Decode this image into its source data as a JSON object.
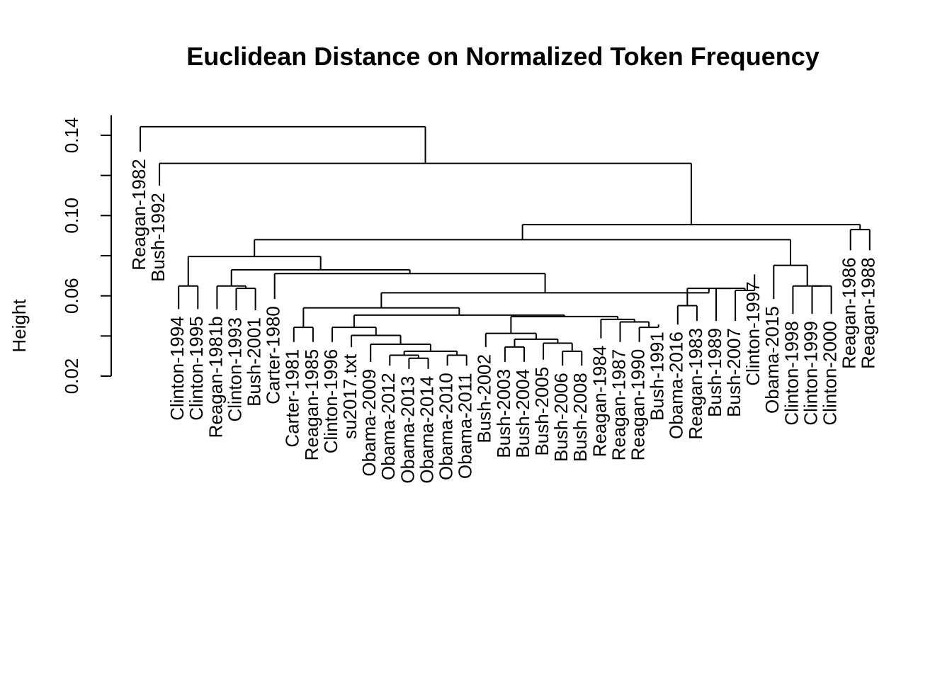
{
  "chart_data": {
    "type": "dendrogram",
    "title": "Euclidean Distance on Normalized Token Frequency",
    "ylabel": "Height",
    "ylim": [
      0.02,
      0.15
    ],
    "yticks": [
      0.02,
      0.06,
      0.1,
      0.14
    ],
    "ytick_labels": [
      "0.02",
      "0.06",
      "0.10",
      "0.14"
    ],
    "leaves": [
      {
        "label": "Reagan-1982",
        "height": 0.1318
      },
      {
        "label": "Bush-1992",
        "height": 0.1149
      },
      {
        "label": "Clinton-1994",
        "height": 0.0534
      },
      {
        "label": "Clinton-1995",
        "height": 0.0534
      },
      {
        "label": "Reagan-1981b",
        "height": 0.0534
      },
      {
        "label": "Clinton-1993",
        "height": 0.0528
      },
      {
        "label": "Bush-2001",
        "height": 0.0528
      },
      {
        "label": "Carter-1980",
        "height": 0.0584
      },
      {
        "label": "Carter-1981",
        "height": 0.037
      },
      {
        "label": "Reagan-1985",
        "height": 0.037
      },
      {
        "label": "Clinton-1996",
        "height": 0.037
      },
      {
        "label": "su2017.txt",
        "height": 0.0345
      },
      {
        "label": "Obama-2009",
        "height": 0.0271
      },
      {
        "label": "Obama-2012",
        "height": 0.0252
      },
      {
        "label": "Obama-2013",
        "height": 0.0236
      },
      {
        "label": "Obama-2014",
        "height": 0.0236
      },
      {
        "label": "Obama-2010",
        "height": 0.0252
      },
      {
        "label": "Obama-2011",
        "height": 0.0252
      },
      {
        "label": "Bush-2002",
        "height": 0.0345
      },
      {
        "label": "Bush-2003",
        "height": 0.0271
      },
      {
        "label": "Bush-2004",
        "height": 0.0271
      },
      {
        "label": "Bush-2005",
        "height": 0.0282
      },
      {
        "label": "Bush-2006",
        "height": 0.0252
      },
      {
        "label": "Bush-2008",
        "height": 0.0252
      },
      {
        "label": "Reagan-1984",
        "height": 0.0388
      },
      {
        "label": "Reagan-1987",
        "height": 0.037
      },
      {
        "label": "Reagan-1990",
        "height": 0.037
      },
      {
        "label": "Bush-1991",
        "height": 0.0457
      },
      {
        "label": "Obama-2016",
        "height": 0.0457
      },
      {
        "label": "Reagan-1983",
        "height": 0.0475
      },
      {
        "label": "Bush-1989",
        "height": 0.0475
      },
      {
        "label": "Bush-2007",
        "height": 0.0475
      },
      {
        "label": "Clinton-1997",
        "height": 0.0707
      },
      {
        "label": "Obama-2015",
        "height": 0.0584
      },
      {
        "label": "Clinton-1998",
        "height": 0.051
      },
      {
        "label": "Clinton-1999",
        "height": 0.051
      },
      {
        "label": "Clinton-2000",
        "height": 0.051
      },
      {
        "label": "Reagan-1986",
        "height": 0.0827
      },
      {
        "label": "Reagan-1988",
        "height": 0.0827
      }
    ],
    "merges": [
      {
        "left": "Obama-2013",
        "right": "Obama-2014",
        "height": 0.0289
      },
      {
        "left": "Obama-2010",
        "right": "Obama-2011",
        "height": 0.0304
      },
      {
        "left": "Obama-2012",
        "right": "m1",
        "height": 0.0304
      },
      {
        "left": "m3",
        "right": "m2",
        "height": 0.0324
      },
      {
        "left": "Obama-2009",
        "right": "m4",
        "height": 0.0359
      },
      {
        "left": "su2017.txt",
        "right": "m5",
        "height": 0.0403
      },
      {
        "left": "Clinton-1996",
        "right": "m6",
        "height": 0.0443
      },
      {
        "left": "Bush-2003",
        "right": "Bush-2004",
        "height": 0.0345
      },
      {
        "left": "Bush-2006",
        "right": "Bush-2008",
        "height": 0.0324
      },
      {
        "left": "Bush-2005",
        "right": "m9",
        "height": 0.0364
      },
      {
        "left": "m8",
        "right": "m10",
        "height": 0.0384
      },
      {
        "left": "Bush-2002",
        "right": "m11",
        "height": 0.0413
      },
      {
        "left": "Reagan-1990",
        "right": "Bush-1991",
        "height": 0.0443
      },
      {
        "left": "Reagan-1987",
        "right": "m13",
        "height": 0.047
      },
      {
        "left": "Reagan-1984",
        "right": "m14",
        "height": 0.0483
      },
      {
        "left": "m12",
        "right": "m15",
        "height": 0.0497
      },
      {
        "left": "m7",
        "right": "m16",
        "height": 0.0504
      },
      {
        "left": "Carter-1981",
        "right": "Reagan-1985",
        "height": 0.0443
      },
      {
        "left": "m18",
        "right": "m17",
        "height": 0.054
      },
      {
        "left": "Obama-2016",
        "right": "Reagan-1983",
        "height": 0.0551
      },
      {
        "left": "Bush-2007",
        "right": "Clinton-1997",
        "height": 0.0627
      },
      {
        "left": "Bush-1989",
        "right": "m21",
        "height": 0.0637
      },
      {
        "left": "m20",
        "right": "m22",
        "height": 0.0637
      },
      {
        "left": "m19",
        "right": "m23",
        "height": 0.0615
      },
      {
        "left": "Carter-1980",
        "right": "m24",
        "height": 0.0711
      },
      {
        "left": "Clinton-1999",
        "right": "Clinton-2000",
        "height": 0.0649
      },
      {
        "left": "Clinton-1998",
        "right": "m26",
        "height": 0.0649
      },
      {
        "left": "Obama-2015",
        "right": "m27",
        "height": 0.0752
      },
      {
        "left": "Reagan-1986",
        "right": "Reagan-1988",
        "height": 0.093
      },
      {
        "left": "Clinton-1994",
        "right": "Clinton-1995",
        "height": 0.0649
      },
      {
        "left": "Clinton-1993",
        "right": "Bush-2001",
        "height": 0.0637
      },
      {
        "left": "Reagan-1981b",
        "right": "m31",
        "height": 0.0649
      },
      {
        "left": "m32",
        "right": "m25",
        "height": 0.073
      },
      {
        "left": "m30",
        "right": "m33",
        "height": 0.0796
      },
      {
        "left": "m34",
        "right": "m28",
        "height": 0.088
      },
      {
        "left": "m35",
        "right": "m29",
        "height": 0.0955
      },
      {
        "left": "Bush-1992",
        "right": "m36",
        "height": 0.126
      },
      {
        "left": "Reagan-1982",
        "right": "m37",
        "height": 0.1443
      }
    ]
  }
}
